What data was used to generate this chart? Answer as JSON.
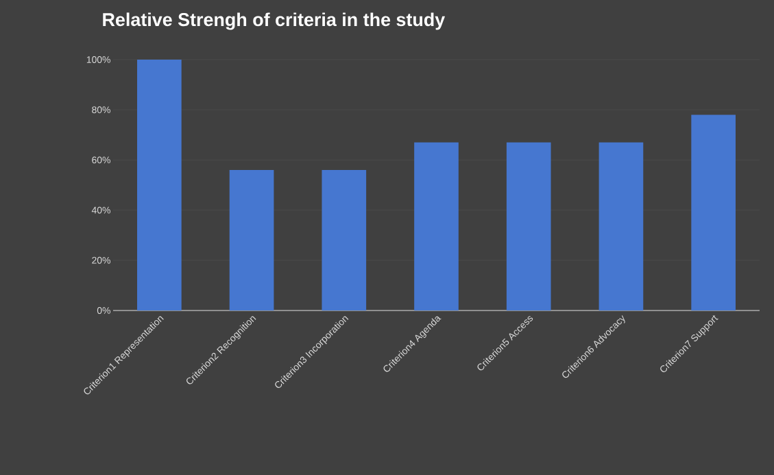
{
  "chart_data": {
    "type": "bar",
    "title": "Relative Strengh of criteria in the study",
    "categories": [
      "Criterion1 Representation",
      "Criterion2 Recognition",
      "Criterion3 Incorporation",
      "Criterion4 Agenda",
      "Criterion5 Access",
      "Criterion6 Advocacy",
      "Criterion7 Support"
    ],
    "values": [
      100,
      56,
      56,
      67,
      67,
      67,
      78
    ],
    "color": "#4677d0",
    "ylim": [
      0,
      100
    ],
    "yticks": [
      {
        "value": 0,
        "label": "0%"
      },
      {
        "value": 20,
        "label": "20%"
      },
      {
        "value": 40,
        "label": "40%"
      },
      {
        "value": 60,
        "label": "60%"
      },
      {
        "value": 80,
        "label": "80%"
      },
      {
        "value": 100,
        "label": "100%"
      }
    ],
    "grid": "y"
  }
}
